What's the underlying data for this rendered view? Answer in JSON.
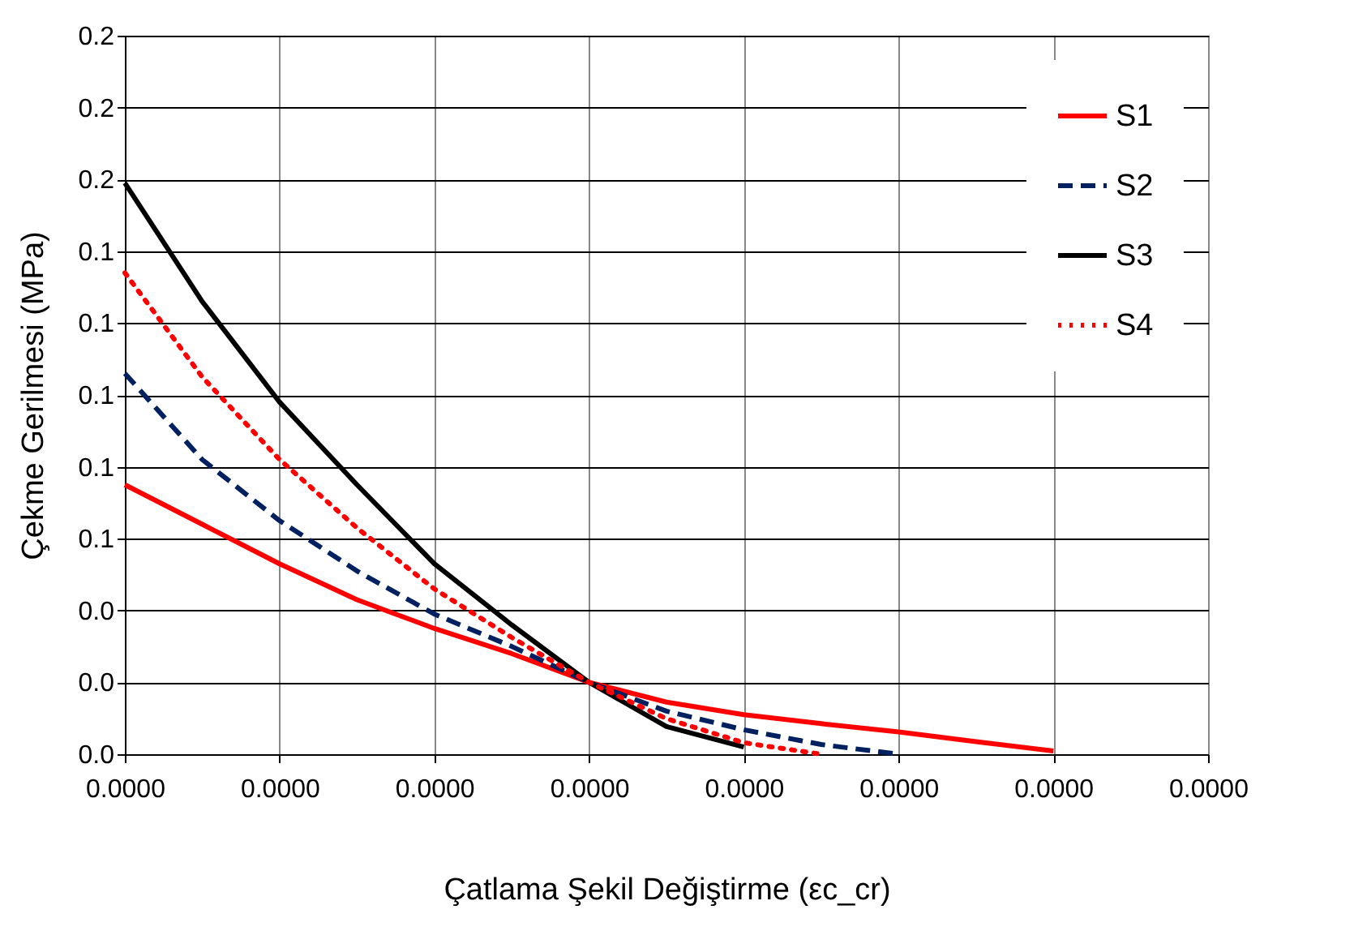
{
  "chart_data": {
    "type": "line",
    "xlabel": "Çatlama Şekil Değiştirme (εc_cr)",
    "ylabel": "Çekme Gerilmesi (MPa)",
    "categories": [
      "0.0000",
      null,
      "0.0000",
      null,
      "0.0000",
      null,
      "0.0000",
      null,
      "0.0000",
      null,
      "0.0000",
      null,
      "0.0000",
      null,
      "0.0000"
    ],
    "ylim": [
      0,
      0.2
    ],
    "yticks": [
      {
        "value": 0,
        "label": "0.0"
      },
      {
        "value": 0.02,
        "label": "0.0"
      },
      {
        "value": 0.04,
        "label": "0.0"
      },
      {
        "value": 0.06,
        "label": "0.1"
      },
      {
        "value": 0.08,
        "label": "0.1"
      },
      {
        "value": 0.1,
        "label": "0.1"
      },
      {
        "value": 0.12,
        "label": "0.1"
      },
      {
        "value": 0.14,
        "label": "0.1"
      },
      {
        "value": 0.16,
        "label": "0.2"
      },
      {
        "value": 0.18,
        "label": "0.2"
      },
      {
        "value": 0.2,
        "label": "0.2"
      }
    ],
    "grid": true,
    "legend": "top right",
    "series": [
      {
        "name": "S1",
        "color": "#ff0000",
        "line_style": "solid",
        "values": [
          0.075,
          0.064,
          0.053,
          0.043,
          0.035,
          0.028,
          0.02,
          0.0145,
          0.011,
          0.0085,
          0.0062,
          0.0035,
          0.0009,
          null,
          null
        ]
      },
      {
        "name": "S2",
        "color": "#002060",
        "line_style": "dashed",
        "values": [
          0.106,
          0.082,
          0.065,
          0.051,
          0.039,
          0.03,
          0.02,
          0.012,
          0.0068,
          0.0027,
          0,
          null,
          null,
          null,
          null
        ]
      },
      {
        "name": "S3",
        "color": "#000000",
        "line_style": "solid",
        "values": [
          0.159,
          0.126,
          0.098,
          0.075,
          0.053,
          0.036,
          0.02,
          0.0077,
          0.002,
          null,
          null,
          null,
          null,
          null,
          null
        ]
      },
      {
        "name": "S4",
        "color": "#ff0000",
        "line_style": "dotted",
        "values": [
          0.134,
          0.105,
          0.082,
          0.063,
          0.046,
          0.0325,
          0.02,
          0.0099,
          0.0032,
          0,
          null,
          null,
          null,
          null,
          null
        ]
      }
    ]
  }
}
